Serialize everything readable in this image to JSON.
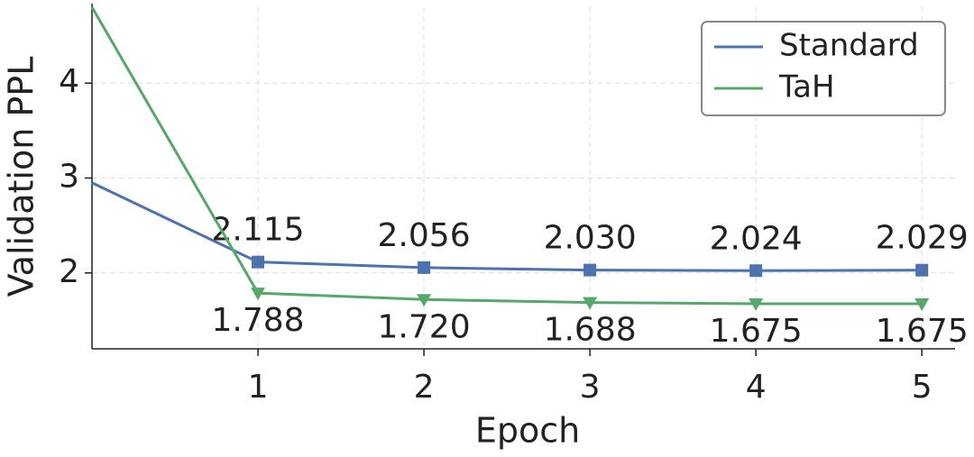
{
  "chart_data": {
    "type": "line",
    "xlabel": "Epoch",
    "ylabel": "Validation PPL",
    "x": [
      0,
      1,
      2,
      3,
      4,
      5
    ],
    "series": [
      {
        "name": "Standard",
        "color": "#4c72b0",
        "marker": "square",
        "values": [
          2.95,
          2.115,
          2.056,
          2.03,
          2.024,
          2.029
        ],
        "value_labels": [
          null,
          "2.115",
          "2.056",
          "2.030",
          "2.024",
          "2.029"
        ]
      },
      {
        "name": "TaH",
        "color": "#55a868",
        "marker": "triangle-down",
        "values": [
          4.8,
          1.788,
          1.72,
          1.688,
          1.675,
          1.675
        ],
        "value_labels": [
          null,
          "1.788",
          "1.720",
          "1.688",
          "1.675",
          "1.675"
        ]
      }
    ],
    "xlim": [
      0,
      5.2
    ],
    "xticks": [
      1,
      2,
      3,
      4,
      5
    ],
    "ylim": [
      1.2,
      4.8
    ],
    "yticks": [
      2,
      3,
      4
    ],
    "grid": true,
    "legend": "upper right"
  }
}
